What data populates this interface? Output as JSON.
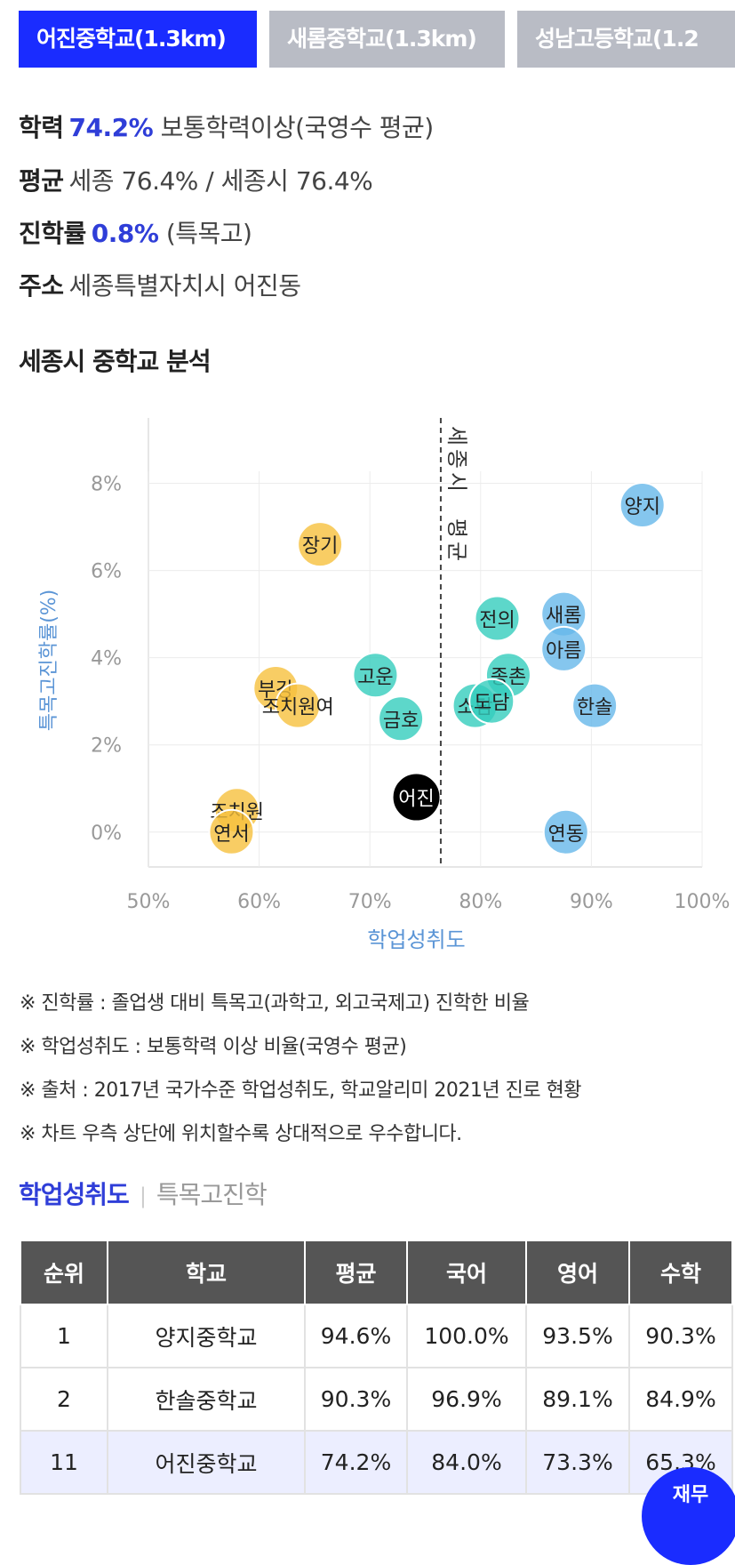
{
  "tabs": [
    {
      "label": "어진중학교(1.3km)",
      "active": true
    },
    {
      "label": "새롬중학교(1.3km)",
      "active": false
    },
    {
      "label": "성남고등학교(1.2",
      "active": false
    }
  ],
  "info": {
    "achievement": {
      "label": "학력",
      "value": "74.2%",
      "desc": "보통학력이상(국영수 평균)"
    },
    "average": {
      "label": "평균",
      "desc": "세종 76.4% / 세종시 76.4%"
    },
    "advance": {
      "label": "진학률",
      "value": "0.8%",
      "desc": "(특목고)"
    },
    "address": {
      "label": "주소",
      "desc": "세종특별자치시 어진동"
    }
  },
  "section_title": "세종시 중학교 분석",
  "colors": {
    "accent": "#2f3ed8",
    "yellow": "#f6c03d",
    "teal": "#35cdbd",
    "blue": "#66b8ea",
    "highlight": "#000000"
  },
  "chart_data": {
    "type": "scatter",
    "xlabel": "학업성취도",
    "ylabel": "특목고진학률(%)",
    "xlim": [
      50,
      100
    ],
    "ylim": [
      -0.8,
      9.5
    ],
    "xticks": [
      "50%",
      "60%",
      "70%",
      "80%",
      "90%",
      "100%"
    ],
    "yticks": [
      "0%",
      "2%",
      "4%",
      "6%",
      "8%"
    ],
    "grid": true,
    "reference_line": {
      "x": 76.4,
      "label": "세종시 평균"
    },
    "points": [
      {
        "name": "양지",
        "x": 94.6,
        "y": 7.5,
        "group": "blue"
      },
      {
        "name": "장기",
        "x": 65.5,
        "y": 6.6,
        "group": "yellow"
      },
      {
        "name": "새롬",
        "x": 87.5,
        "y": 5.0,
        "group": "blue"
      },
      {
        "name": "전의",
        "x": 81.5,
        "y": 4.9,
        "group": "teal"
      },
      {
        "name": "아름",
        "x": 87.5,
        "y": 4.2,
        "group": "blue"
      },
      {
        "name": "종촌",
        "x": 82.5,
        "y": 3.6,
        "group": "teal"
      },
      {
        "name": "고운",
        "x": 70.5,
        "y": 3.6,
        "group": "teal"
      },
      {
        "name": "부강",
        "x": 61.5,
        "y": 3.3,
        "group": "yellow"
      },
      {
        "name": "조치원여",
        "x": 63.5,
        "y": 2.9,
        "group": "yellow"
      },
      {
        "name": "한솔",
        "x": 90.3,
        "y": 2.9,
        "group": "blue"
      },
      {
        "name": "소담",
        "x": 79.5,
        "y": 2.9,
        "group": "teal"
      },
      {
        "name": "도담",
        "x": 81.0,
        "y": 3.0,
        "group": "teal"
      },
      {
        "name": "금호",
        "x": 72.8,
        "y": 2.6,
        "group": "teal"
      },
      {
        "name": "어진",
        "x": 74.2,
        "y": 0.8,
        "group": "highlight"
      },
      {
        "name": "조치원",
        "x": 58.0,
        "y": 0.5,
        "group": "yellow"
      },
      {
        "name": "연서",
        "x": 57.5,
        "y": 0.0,
        "group": "yellow"
      },
      {
        "name": "연동",
        "x": 87.7,
        "y": 0.0,
        "group": "blue"
      }
    ]
  },
  "notes": [
    "※ 진학률 : 졸업생 대비 특목고(과학고, 외고국제고) 진학한 비율",
    "※ 학업성취도 : 보통학력 이상 비율(국영수 평균)",
    "※ 출처 : 2017년 국가수준 학업성취도, 학교알리미 2021년 진로 현황",
    "※ 차트 우측 상단에 위치할수록 상대적으로 우수합니다."
  ],
  "subtabs": {
    "active": "학업성취도",
    "inactive": "특목고진학"
  },
  "table": {
    "headers": [
      "순위",
      "학교",
      "평균",
      "국어",
      "영어",
      "수학"
    ],
    "rows": [
      [
        "1",
        "양지중학교",
        "94.6%",
        "100.0%",
        "93.5%",
        "90.3%"
      ],
      [
        "2",
        "한솔중학교",
        "90.3%",
        "96.9%",
        "89.1%",
        "84.9%"
      ],
      [
        "11",
        "어진중학교",
        "74.2%",
        "84.0%",
        "73.3%",
        "65.3%"
      ]
    ]
  },
  "fab_label": "재무"
}
